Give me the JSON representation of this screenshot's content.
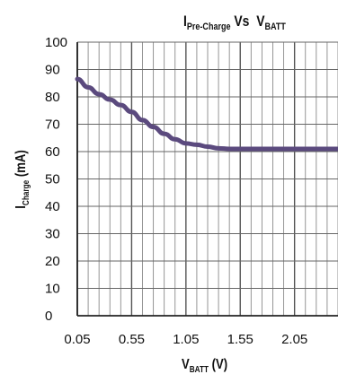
{
  "chart_data": {
    "type": "line",
    "title_main": "I",
    "title_sub": "Pre-Charge",
    "title_vs": "Vs",
    "title_v": "V",
    "title_v_sub": "BATT",
    "xlabel_main": "V",
    "xlabel_sub": "BATT",
    "xlabel_unit": "(V)",
    "ylabel_main": "I",
    "ylabel_sub": "Charge",
    "ylabel_unit": "(mA)",
    "xlim": [
      0.05,
      2.45
    ],
    "ylim": [
      0,
      100
    ],
    "x_ticks": [
      "0.05",
      "0.55",
      "1.05",
      "1.55",
      "2.05"
    ],
    "y_ticks": [
      "0",
      "10",
      "20",
      "30",
      "40",
      "50",
      "60",
      "70",
      "80",
      "90",
      "100"
    ],
    "grid": true,
    "line_color": "#5b4a7e",
    "series": [
      {
        "x": [
          0.05,
          0.15,
          0.25,
          0.35,
          0.45,
          0.55,
          0.65,
          0.75,
          0.85,
          0.95,
          1.05,
          1.15,
          1.25,
          1.35,
          1.45,
          1.55,
          1.75,
          2.05,
          2.25,
          2.45
        ],
        "values": [
          86.5,
          83.5,
          81,
          79,
          77,
          74.5,
          71.5,
          69,
          66.5,
          64.5,
          63,
          62.5,
          61.8,
          61.2,
          61,
          61,
          61,
          61,
          61,
          61
        ]
      }
    ]
  }
}
